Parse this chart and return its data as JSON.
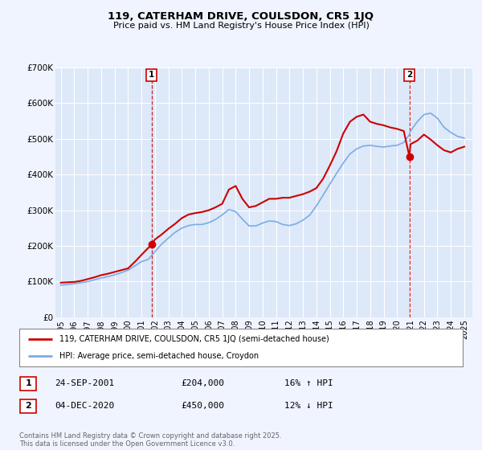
{
  "title": "119, CATERHAM DRIVE, COULSDON, CR5 1JQ",
  "subtitle": "Price paid vs. HM Land Registry's House Price Index (HPI)",
  "red_line_label": "119, CATERHAM DRIVE, COULSDON, CR5 1JQ (semi-detached house)",
  "blue_line_label": "HPI: Average price, semi-detached house, Croydon",
  "annotation1": {
    "num": "1",
    "date": "24-SEP-2001",
    "price": "£204,000",
    "hpi": "16% ↑ HPI"
  },
  "annotation2": {
    "num": "2",
    "date": "04-DEC-2020",
    "price": "£450,000",
    "hpi": "12% ↓ HPI"
  },
  "footer": "Contains HM Land Registry data © Crown copyright and database right 2025.\nThis data is licensed under the Open Government Licence v3.0.",
  "ylim": [
    0,
    700000
  ],
  "yticks": [
    0,
    100000,
    200000,
    300000,
    400000,
    500000,
    600000,
    700000
  ],
  "ytick_labels": [
    "£0",
    "£100K",
    "£200K",
    "£300K",
    "£400K",
    "£500K",
    "£600K",
    "£700K"
  ],
  "background_color": "#f0f4ff",
  "plot_bg_color": "#dde8f8",
  "grid_color": "#ffffff",
  "red_color": "#cc0000",
  "blue_color": "#7aace8",
  "vline1_x": 2001.75,
  "vline2_x": 2020.92,
  "red_data": [
    [
      1995.0,
      97000
    ],
    [
      1995.5,
      98000
    ],
    [
      1996.0,
      99000
    ],
    [
      1996.5,
      102000
    ],
    [
      1997.0,
      107000
    ],
    [
      1997.5,
      112000
    ],
    [
      1998.0,
      118000
    ],
    [
      1998.5,
      122000
    ],
    [
      1999.0,
      127000
    ],
    [
      1999.5,
      132000
    ],
    [
      2000.0,
      137000
    ],
    [
      2000.5,
      155000
    ],
    [
      2001.0,
      175000
    ],
    [
      2001.75,
      204000
    ],
    [
      2002.0,
      218000
    ],
    [
      2002.5,
      232000
    ],
    [
      2003.0,
      248000
    ],
    [
      2003.5,
      262000
    ],
    [
      2004.0,
      278000
    ],
    [
      2004.5,
      288000
    ],
    [
      2005.0,
      292000
    ],
    [
      2005.5,
      295000
    ],
    [
      2006.0,
      300000
    ],
    [
      2006.5,
      308000
    ],
    [
      2007.0,
      318000
    ],
    [
      2007.5,
      358000
    ],
    [
      2008.0,
      368000
    ],
    [
      2008.5,
      332000
    ],
    [
      2009.0,
      308000
    ],
    [
      2009.5,
      312000
    ],
    [
      2010.0,
      322000
    ],
    [
      2010.5,
      332000
    ],
    [
      2011.0,
      332000
    ],
    [
      2011.5,
      335000
    ],
    [
      2012.0,
      335000
    ],
    [
      2012.5,
      340000
    ],
    [
      2013.0,
      345000
    ],
    [
      2013.5,
      352000
    ],
    [
      2014.0,
      362000
    ],
    [
      2014.5,
      388000
    ],
    [
      2015.0,
      425000
    ],
    [
      2015.5,
      465000
    ],
    [
      2016.0,
      515000
    ],
    [
      2016.5,
      548000
    ],
    [
      2017.0,
      562000
    ],
    [
      2017.5,
      568000
    ],
    [
      2018.0,
      548000
    ],
    [
      2018.5,
      542000
    ],
    [
      2019.0,
      538000
    ],
    [
      2019.5,
      532000
    ],
    [
      2020.0,
      528000
    ],
    [
      2020.5,
      522000
    ],
    [
      2020.92,
      450000
    ],
    [
      2021.0,
      485000
    ],
    [
      2021.5,
      495000
    ],
    [
      2022.0,
      512000
    ],
    [
      2022.5,
      498000
    ],
    [
      2023.0,
      482000
    ],
    [
      2023.5,
      468000
    ],
    [
      2024.0,
      462000
    ],
    [
      2024.5,
      472000
    ],
    [
      2025.0,
      478000
    ]
  ],
  "blue_data": [
    [
      1995.0,
      90000
    ],
    [
      1995.5,
      92000
    ],
    [
      1996.0,
      94000
    ],
    [
      1996.5,
      97000
    ],
    [
      1997.0,
      100000
    ],
    [
      1997.5,
      105000
    ],
    [
      1998.0,
      110000
    ],
    [
      1998.5,
      114000
    ],
    [
      1999.0,
      119000
    ],
    [
      1999.5,
      125000
    ],
    [
      2000.0,
      132000
    ],
    [
      2000.5,
      144000
    ],
    [
      2001.0,
      156000
    ],
    [
      2001.5,
      162000
    ],
    [
      2002.0,
      184000
    ],
    [
      2002.5,
      205000
    ],
    [
      2003.0,
      222000
    ],
    [
      2003.5,
      238000
    ],
    [
      2004.0,
      250000
    ],
    [
      2004.5,
      257000
    ],
    [
      2005.0,
      260000
    ],
    [
      2005.5,
      260000
    ],
    [
      2006.0,
      265000
    ],
    [
      2006.5,
      274000
    ],
    [
      2007.0,
      287000
    ],
    [
      2007.5,
      302000
    ],
    [
      2008.0,
      296000
    ],
    [
      2008.5,
      275000
    ],
    [
      2009.0,
      256000
    ],
    [
      2009.5,
      256000
    ],
    [
      2010.0,
      264000
    ],
    [
      2010.5,
      270000
    ],
    [
      2011.0,
      268000
    ],
    [
      2011.5,
      260000
    ],
    [
      2012.0,
      257000
    ],
    [
      2012.5,
      262000
    ],
    [
      2013.0,
      272000
    ],
    [
      2013.5,
      286000
    ],
    [
      2014.0,
      312000
    ],
    [
      2014.5,
      342000
    ],
    [
      2015.0,
      373000
    ],
    [
      2015.5,
      403000
    ],
    [
      2016.0,
      432000
    ],
    [
      2016.5,
      458000
    ],
    [
      2017.0,
      472000
    ],
    [
      2017.5,
      480000
    ],
    [
      2018.0,
      482000
    ],
    [
      2018.5,
      479000
    ],
    [
      2019.0,
      477000
    ],
    [
      2019.5,
      480000
    ],
    [
      2020.0,
      482000
    ],
    [
      2020.5,
      490000
    ],
    [
      2020.92,
      512000
    ],
    [
      2021.0,
      522000
    ],
    [
      2021.5,
      548000
    ],
    [
      2022.0,
      568000
    ],
    [
      2022.5,
      572000
    ],
    [
      2023.0,
      558000
    ],
    [
      2023.5,
      532000
    ],
    [
      2024.0,
      518000
    ],
    [
      2024.5,
      507000
    ],
    [
      2025.0,
      502000
    ]
  ],
  "xtick_years": [
    1995,
    1996,
    1997,
    1998,
    1999,
    2000,
    2001,
    2002,
    2003,
    2004,
    2005,
    2006,
    2007,
    2008,
    2009,
    2010,
    2011,
    2012,
    2013,
    2014,
    2015,
    2016,
    2017,
    2018,
    2019,
    2020,
    2021,
    2022,
    2023,
    2024,
    2025
  ]
}
